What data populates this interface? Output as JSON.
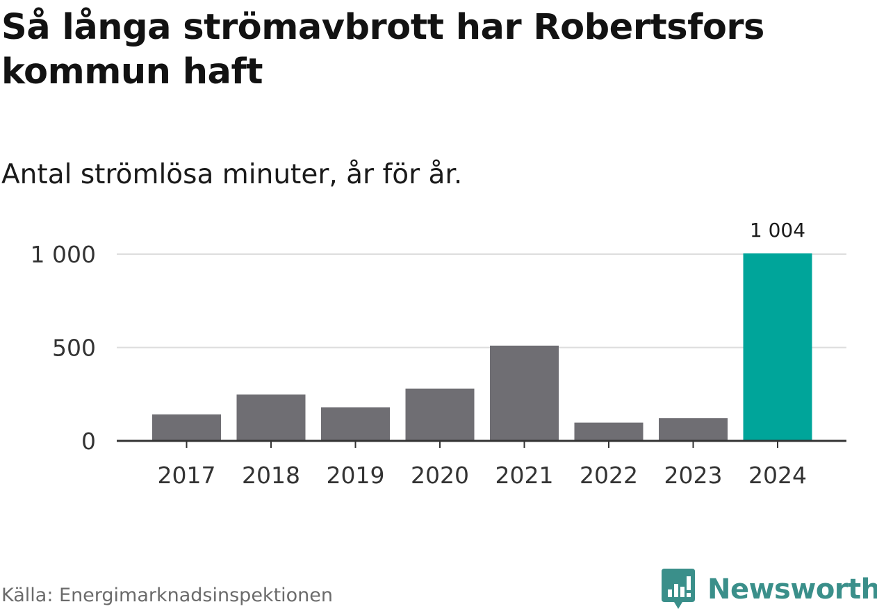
{
  "title": "Så långa strömavbrott har Robertsfors kommun haft",
  "subtitle": "Antal strömlösa minuter, år för år.",
  "source": "Källa: Energimarknadsinspektionen",
  "brand": {
    "name": "Newsworthy",
    "logo_icon": "bar-chart-speech-bubble-icon",
    "color": "#3a8f8a"
  },
  "colors": {
    "default_bar": "#6f6e73",
    "highlight_bar": "#00a59a",
    "grid": "#dddddd",
    "axis": "#333333"
  },
  "chart_data": {
    "type": "bar",
    "title": "Så långa strömavbrott har Robertsfors kommun haft",
    "subtitle": "Antal strömlösa minuter, år för år.",
    "xlabel": "",
    "ylabel": "",
    "categories": [
      "2017",
      "2018",
      "2019",
      "2020",
      "2021",
      "2022",
      "2023",
      "2024"
    ],
    "values": [
      142,
      248,
      180,
      280,
      510,
      98,
      122,
      1004
    ],
    "highlight_index": 7,
    "data_labels": [
      {
        "index": 7,
        "text": "1 004"
      }
    ],
    "ylim": [
      0,
      1000
    ],
    "yticks": [
      {
        "value": 0,
        "label": "0"
      },
      {
        "value": 500,
        "label": "500"
      },
      {
        "value": 1000,
        "label": "1 000"
      }
    ],
    "grid": true,
    "legend": "none"
  }
}
